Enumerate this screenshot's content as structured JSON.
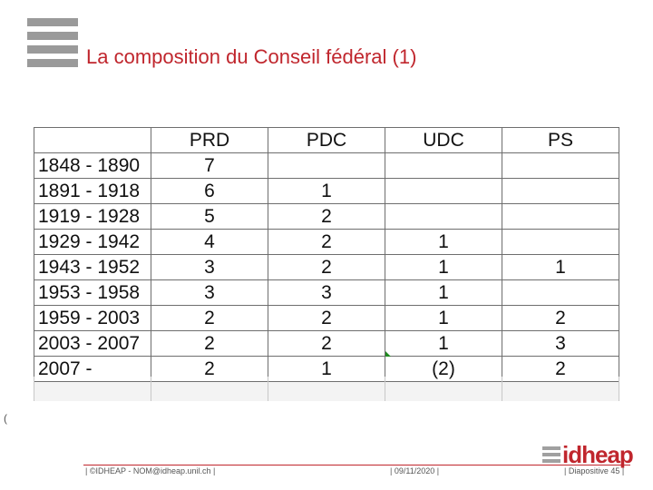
{
  "slide": {
    "title": "La composition du Conseil fédéral (1)",
    "stray_char": "(",
    "logo_text": "idheap"
  },
  "table": {
    "headers": [
      "",
      "PRD",
      "PDC",
      "UDC",
      "PS"
    ],
    "rows": [
      [
        "1848 - 1890",
        "7",
        "",
        "",
        ""
      ],
      [
        "1891 - 1918",
        "6",
        "1",
        "",
        ""
      ],
      [
        "1919 - 1928",
        "5",
        "2",
        "",
        ""
      ],
      [
        "1929 - 1942",
        "4",
        "2",
        "1",
        ""
      ],
      [
        "1943 - 1952",
        "3",
        "2",
        "1",
        "1"
      ],
      [
        "1953 - 1958",
        "3",
        "3",
        "1",
        ""
      ],
      [
        "1959 - 2003",
        "2",
        "2",
        "1",
        "2"
      ],
      [
        "2003 - 2007",
        "2",
        "2",
        "1",
        "3"
      ],
      [
        "2007 -",
        "2",
        "1",
        "(2)",
        "2"
      ]
    ]
  },
  "footer": {
    "left": "©IDHEAP - NOM@idheap.unil.ch",
    "date": "09/11/2020",
    "page": "Diapositive 45"
  }
}
